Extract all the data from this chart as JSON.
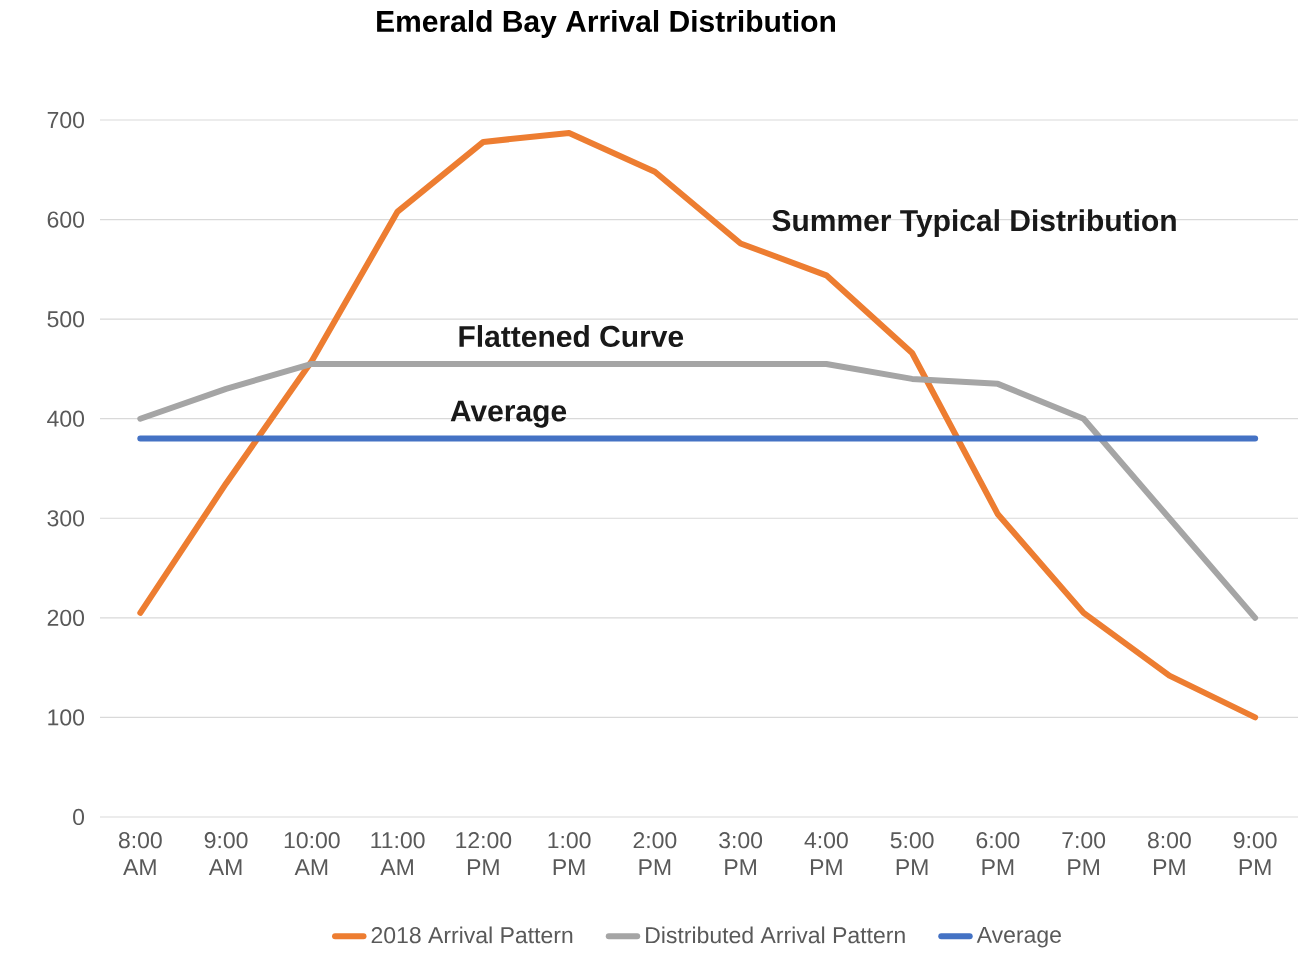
{
  "chart_data": {
    "type": "line",
    "title": "Emerald Bay Arrival Distribution",
    "categories": [
      "8:00 AM",
      "9:00 AM",
      "10:00 AM",
      "11:00 AM",
      "12:00 PM",
      "1:00 PM",
      "2:00 PM",
      "3:00 PM",
      "4:00 PM",
      "5:00 PM",
      "6:00 PM",
      "7:00 PM",
      "8:00 PM",
      "9:00 PM"
    ],
    "series": [
      {
        "name": "2018 Arrival Pattern",
        "color": "#ed7d31",
        "values": [
          205,
          335,
          458,
          608,
          678,
          687,
          648,
          576,
          544,
          466,
          304,
          205,
          142,
          100
        ]
      },
      {
        "name": "Distributed Arrival Pattern",
        "color": "#a5a5a5",
        "values": [
          400,
          430,
          455,
          455,
          455,
          455,
          455,
          455,
          455,
          440,
          435,
          400,
          300,
          200
        ]
      },
      {
        "name": "Average",
        "color": "#4472c4",
        "values": [
          380,
          380,
          380,
          380,
          380,
          380,
          380,
          380,
          380,
          380,
          380,
          380,
          380,
          380
        ]
      }
    ],
    "ylim": [
      0,
      700
    ],
    "yticks": [
      0,
      100,
      200,
      300,
      400,
      500,
      600,
      700
    ],
    "grid": "y",
    "legend": "bottom",
    "marker": "none",
    "line_style": "solid",
    "annotations": [
      "Summer Typical Distribution",
      "Flattened Curve",
      "Average"
    ]
  }
}
